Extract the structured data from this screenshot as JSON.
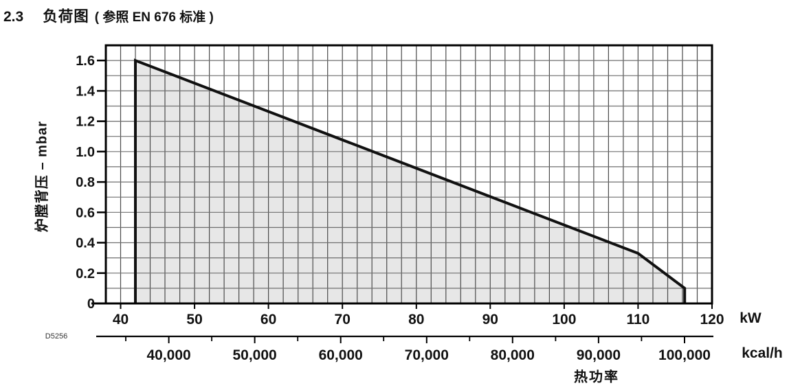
{
  "title": {
    "number": "2.3",
    "text": "负荷图",
    "ref": "( 参照 EN 676 标准 )"
  },
  "chart_data": {
    "type": "area",
    "title": "负荷图 ( 参照 EN 676 标准 )",
    "figure_code": "D5256",
    "grid": true,
    "fill_color": "#e7e7e7",
    "line_color": "#111111",
    "vgrid_color": "#4a4a4a",
    "hgrid_color": "#6f6f6f",
    "x_axis_kw": {
      "unit": "kW",
      "range": [
        38,
        120
      ],
      "grid_step": 2,
      "ticks": [
        {
          "value": 40,
          "label": "40"
        },
        {
          "value": 50,
          "label": "50"
        },
        {
          "value": 60,
          "label": "60"
        },
        {
          "value": 70,
          "label": "70"
        },
        {
          "value": 80,
          "label": "80"
        },
        {
          "value": 90,
          "label": "90"
        },
        {
          "value": 100,
          "label": "100"
        },
        {
          "value": 110,
          "label": "110"
        },
        {
          "value": 120,
          "label": "120"
        }
      ]
    },
    "x_axis_kcal": {
      "unit": "kcal/h",
      "axis_title": "热功率",
      "kcal_per_kw": 860,
      "major_ticks": [
        {
          "value": 40000,
          "label": "40,000"
        },
        {
          "value": 50000,
          "label": "50,000"
        },
        {
          "value": 60000,
          "label": "60,000"
        },
        {
          "value": 70000,
          "label": "70,000"
        },
        {
          "value": 80000,
          "label": "80,000"
        },
        {
          "value": 90000,
          "label": "90,000"
        },
        {
          "value": 100000,
          "label": "100,000"
        }
      ],
      "minor_ticks": [
        35000,
        45000,
        55000,
        65000,
        75000,
        85000,
        95000
      ]
    },
    "y_axis": {
      "axis_title": "炉膛背压 – mbar",
      "range": [
        0,
        1.7
      ],
      "grid_step": 0.1,
      "ticks": [
        {
          "value": 1.6,
          "label": "1.6"
        },
        {
          "value": 1.4,
          "label": "1.4"
        },
        {
          "value": 1.2,
          "label": "1.2"
        },
        {
          "value": 1.0,
          "label": "1.0"
        },
        {
          "value": 0.8,
          "label": "0.8"
        },
        {
          "value": 0.6,
          "label": "0.6"
        },
        {
          "value": 0.4,
          "label": "0.4"
        },
        {
          "value": 0.2,
          "label": "0.2"
        },
        {
          "value": 0,
          "label": "0"
        }
      ]
    },
    "series": [
      {
        "name": "working-field",
        "points": [
          [
            42,
            0
          ],
          [
            42,
            1.6
          ],
          [
            110,
            0.33
          ],
          [
            116.3,
            0.1
          ],
          [
            116.3,
            0
          ]
        ]
      }
    ]
  }
}
